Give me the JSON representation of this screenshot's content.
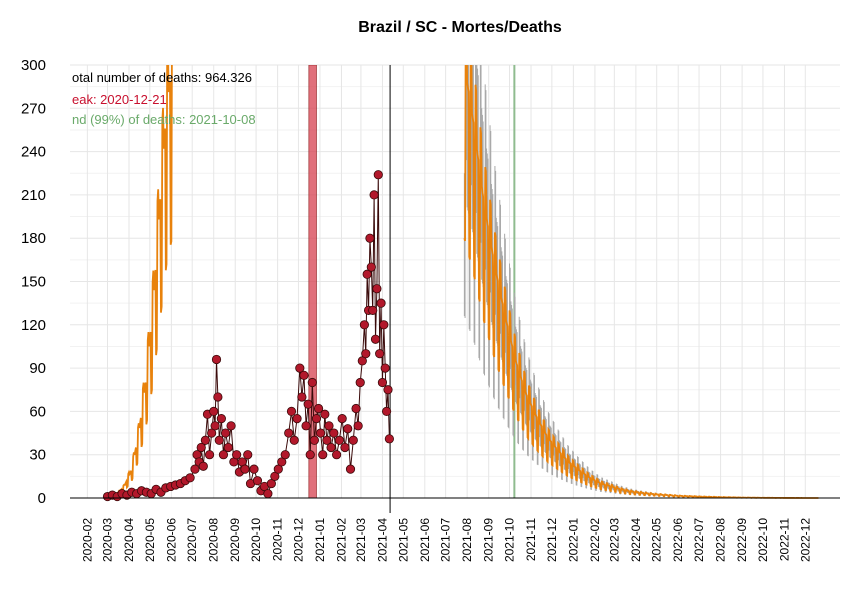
{
  "chart_data": {
    "type": "line",
    "title": "Brazil / SC - Mortes/Deaths",
    "xlabel": "",
    "ylabel": "",
    "ylim": [
      0,
      300
    ],
    "yticks": [
      0,
      30,
      60,
      90,
      120,
      150,
      180,
      210,
      240,
      270,
      300
    ],
    "x_range": [
      "2020-01-07",
      "2023-01-20"
    ],
    "x_ticks": [
      "2020-02",
      "2020-03",
      "2020-04",
      "2020-05",
      "2020-06",
      "2020-07",
      "2020-08",
      "2020-09",
      "2020-10",
      "2020-11",
      "2020-12",
      "2021-01",
      "2021-02",
      "2021-03",
      "2021-04",
      "2021-05",
      "2021-06",
      "2021-07",
      "2021-08",
      "2021-09",
      "2021-10",
      "2021-11",
      "2021-12",
      "2022-01",
      "2022-02",
      "2022-03",
      "2022-04",
      "2022-05",
      "2022-06",
      "2022-07",
      "2022-08",
      "2022-09",
      "2022-10",
      "2022-11",
      "2022-12"
    ],
    "grid": true,
    "annotations": {
      "total": "otal number of deaths: 964.326",
      "peak": "eak: 2020-12-21",
      "end": "nd (99%) of deaths: 2021-10-08"
    },
    "colors": {
      "observed": "#b2182b",
      "observed_edge": "#3a0a0a",
      "fit": "#e8820c",
      "band": "#a9a9a9",
      "peak": "#d6404f",
      "end_line": "#8fbc8f",
      "total_text": "#000000",
      "peak_text": "#c8102e",
      "end_text": "#6aaa6a"
    },
    "peak_band": [
      "2020-12-16",
      "2020-12-27"
    ],
    "end_date": "2021-10-08",
    "cutoff_date": "2021-04-12",
    "observed": [
      [
        "2020-03-01",
        1
      ],
      [
        "2020-03-08",
        2
      ],
      [
        "2020-03-15",
        1
      ],
      [
        "2020-03-22",
        3
      ],
      [
        "2020-03-29",
        2
      ],
      [
        "2020-04-05",
        4
      ],
      [
        "2020-04-12",
        3
      ],
      [
        "2020-04-19",
        5
      ],
      [
        "2020-04-26",
        4
      ],
      [
        "2020-05-03",
        3
      ],
      [
        "2020-05-10",
        6
      ],
      [
        "2020-05-17",
        4
      ],
      [
        "2020-05-24",
        7
      ],
      [
        "2020-05-31",
        8
      ],
      [
        "2020-06-07",
        9
      ],
      [
        "2020-06-14",
        10
      ],
      [
        "2020-06-21",
        12
      ],
      [
        "2020-06-28",
        14
      ],
      [
        "2020-07-05",
        20
      ],
      [
        "2020-07-08",
        30
      ],
      [
        "2020-07-11",
        25
      ],
      [
        "2020-07-14",
        35
      ],
      [
        "2020-07-17",
        22
      ],
      [
        "2020-07-20",
        40
      ],
      [
        "2020-07-23",
        58
      ],
      [
        "2020-07-26",
        30
      ],
      [
        "2020-07-29",
        45
      ],
      [
        "2020-08-01",
        60
      ],
      [
        "2020-08-03",
        50
      ],
      [
        "2020-08-05",
        96
      ],
      [
        "2020-08-07",
        70
      ],
      [
        "2020-08-09",
        40
      ],
      [
        "2020-08-12",
        55
      ],
      [
        "2020-08-15",
        30
      ],
      [
        "2020-08-18",
        45
      ],
      [
        "2020-08-22",
        35
      ],
      [
        "2020-08-26",
        50
      ],
      [
        "2020-08-30",
        25
      ],
      [
        "2020-09-03",
        30
      ],
      [
        "2020-09-07",
        18
      ],
      [
        "2020-09-11",
        25
      ],
      [
        "2020-09-15",
        20
      ],
      [
        "2020-09-19",
        30
      ],
      [
        "2020-09-23",
        10
      ],
      [
        "2020-09-28",
        20
      ],
      [
        "2020-10-03",
        12
      ],
      [
        "2020-10-08",
        5
      ],
      [
        "2020-10-13",
        8
      ],
      [
        "2020-10-18",
        3
      ],
      [
        "2020-10-23",
        10
      ],
      [
        "2020-10-28",
        15
      ],
      [
        "2020-11-02",
        20
      ],
      [
        "2020-11-07",
        25
      ],
      [
        "2020-11-12",
        30
      ],
      [
        "2020-11-17",
        45
      ],
      [
        "2020-11-21",
        60
      ],
      [
        "2020-11-25",
        40
      ],
      [
        "2020-11-29",
        55
      ],
      [
        "2020-12-03",
        90
      ],
      [
        "2020-12-06",
        70
      ],
      [
        "2020-12-09",
        85
      ],
      [
        "2020-12-12",
        50
      ],
      [
        "2020-12-15",
        65
      ],
      [
        "2020-12-18",
        30
      ],
      [
        "2020-12-21",
        80
      ],
      [
        "2020-12-24",
        40
      ],
      [
        "2020-12-27",
        55
      ],
      [
        "2020-12-30",
        62
      ],
      [
        "2021-01-02",
        45
      ],
      [
        "2021-01-05",
        30
      ],
      [
        "2021-01-08",
        58
      ],
      [
        "2021-01-11",
        40
      ],
      [
        "2021-01-14",
        50
      ],
      [
        "2021-01-17",
        35
      ],
      [
        "2021-01-21",
        45
      ],
      [
        "2021-01-25",
        30
      ],
      [
        "2021-01-29",
        40
      ],
      [
        "2021-02-02",
        55
      ],
      [
        "2021-02-06",
        35
      ],
      [
        "2021-02-10",
        48
      ],
      [
        "2021-02-14",
        20
      ],
      [
        "2021-02-18",
        40
      ],
      [
        "2021-02-22",
        62
      ],
      [
        "2021-02-25",
        50
      ],
      [
        "2021-02-28",
        80
      ],
      [
        "2021-03-03",
        95
      ],
      [
        "2021-03-06",
        120
      ],
      [
        "2021-03-08",
        100
      ],
      [
        "2021-03-10",
        155
      ],
      [
        "2021-03-12",
        130
      ],
      [
        "2021-03-14",
        180
      ],
      [
        "2021-03-16",
        160
      ],
      [
        "2021-03-18",
        130
      ],
      [
        "2021-03-20",
        210
      ],
      [
        "2021-03-22",
        110
      ],
      [
        "2021-03-24",
        145
      ],
      [
        "2021-03-26",
        224
      ],
      [
        "2021-03-28",
        100
      ],
      [
        "2021-03-30",
        135
      ],
      [
        "2021-04-01",
        80
      ],
      [
        "2021-04-03",
        120
      ],
      [
        "2021-04-05",
        90
      ],
      [
        "2021-04-07",
        60
      ],
      [
        "2021-04-09",
        75
      ],
      [
        "2021-04-11",
        41
      ]
    ],
    "fit": {
      "curve_a": [
        [
          "2020-03-01",
          1
        ],
        [
          "2020-03-15",
          3
        ],
        [
          "2020-03-25",
          8
        ],
        [
          "2020-04-05",
          20
        ],
        [
          "2020-04-15",
          45
        ],
        [
          "2020-04-25",
          80
        ],
        [
          "2020-05-05",
          130
        ],
        [
          "2020-05-15",
          200
        ],
        [
          "2020-05-25",
          270
        ],
        [
          "2020-06-02",
          300
        ]
      ],
      "curve_b": [
        [
          "2021-07-28",
          300
        ],
        [
          "2021-08-10",
          260
        ],
        [
          "2021-08-25",
          205
        ],
        [
          "2021-09-10",
          160
        ],
        [
          "2021-09-25",
          125
        ],
        [
          "2021-10-10",
          95
        ],
        [
          "2021-10-25",
          72
        ],
        [
          "2021-11-10",
          55
        ],
        [
          "2021-11-25",
          42
        ],
        [
          "2021-12-10",
          33
        ],
        [
          "2021-12-25",
          25
        ],
        [
          "2022-01-10",
          19
        ],
        [
          "2022-01-25",
          14
        ],
        [
          "2022-02-10",
          10
        ],
        [
          "2022-02-25",
          8
        ],
        [
          "2022-03-10",
          6
        ],
        [
          "2022-03-25",
          4.5
        ],
        [
          "2022-04-10",
          3.5
        ],
        [
          "2022-05-01",
          2.5
        ],
        [
          "2022-06-01",
          1.5
        ],
        [
          "2022-07-01",
          1
        ],
        [
          "2022-08-01",
          0.6
        ],
        [
          "2022-09-01",
          0.3
        ],
        [
          "2022-10-01",
          0.15
        ],
        [
          "2022-11-01",
          0.05
        ],
        [
          "2022-12-20",
          0
        ]
      ]
    }
  }
}
